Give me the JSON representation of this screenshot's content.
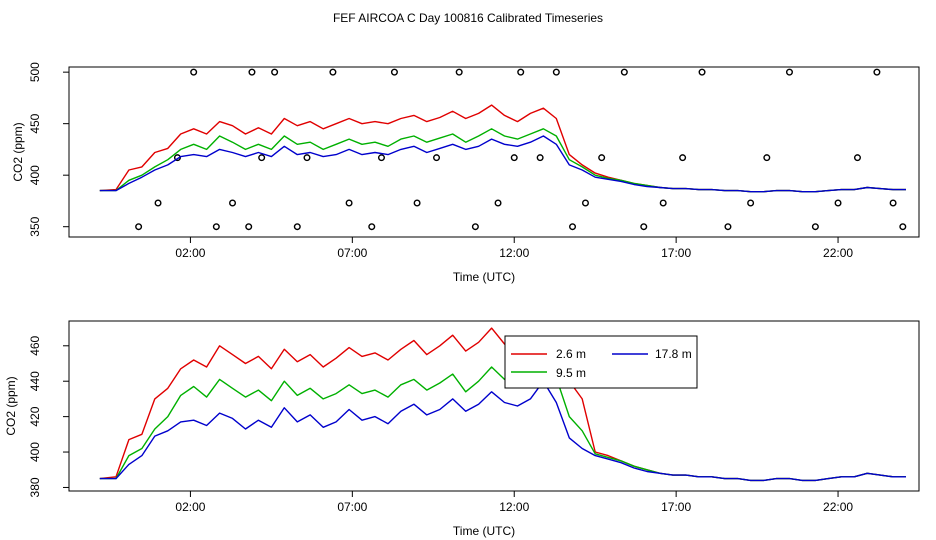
{
  "title": "FEF AIRCOA C  Day 100816  Calibrated Timeseries",
  "colors": {
    "s1": "#e00000",
    "s2": "#00b000",
    "s3": "#0000cc",
    "axis": "#000000"
  },
  "chart_data": [
    {
      "type": "line",
      "xlabel": "Time (UTC)",
      "ylabel": "CO2 (ppm)",
      "xlim": [
        -1.75,
        24.5
      ],
      "ylim": [
        340,
        505
      ],
      "xticks": [
        2,
        7,
        12,
        17,
        22
      ],
      "xtick_labels": [
        "02:00",
        "07:00",
        "12:00",
        "17:00",
        "22:00"
      ],
      "yticks": [
        350,
        400,
        450,
        500
      ],
      "ytick_labels": [
        "350",
        "400",
        "450",
        "500"
      ],
      "grid": false,
      "x": [
        -0.8,
        -0.3,
        0.1,
        0.5,
        0.9,
        1.3,
        1.7,
        2.1,
        2.5,
        2.9,
        3.3,
        3.7,
        4.1,
        4.5,
        4.9,
        5.3,
        5.7,
        6.1,
        6.5,
        6.9,
        7.3,
        7.7,
        8.1,
        8.5,
        8.9,
        9.3,
        9.7,
        10.1,
        10.5,
        10.9,
        11.3,
        11.7,
        12.1,
        12.5,
        12.9,
        13.3,
        13.7,
        14.1,
        14.5,
        14.9,
        15.3,
        15.7,
        16.1,
        16.5,
        16.9,
        17.3,
        17.7,
        18.1,
        18.5,
        18.9,
        19.3,
        19.7,
        20.1,
        20.5,
        20.9,
        21.3,
        21.7,
        22.1,
        22.5,
        22.9,
        23.3,
        23.7,
        24.1
      ],
      "series": [
        {
          "color": "s1",
          "values": [
            385,
            386,
            405,
            408,
            422,
            426,
            440,
            445,
            440,
            452,
            448,
            440,
            446,
            440,
            455,
            448,
            452,
            445,
            450,
            455,
            450,
            452,
            450,
            455,
            458,
            452,
            456,
            462,
            455,
            460,
            468,
            458,
            452,
            460,
            465,
            455,
            420,
            410,
            402,
            398,
            395,
            392,
            390,
            388,
            387,
            387,
            386,
            386,
            385,
            385,
            384,
            384,
            385,
            385,
            384,
            384,
            385,
            386,
            386,
            388,
            387,
            386,
            386
          ]
        },
        {
          "color": "s2",
          "values": [
            385,
            385,
            395,
            400,
            408,
            415,
            425,
            430,
            425,
            438,
            432,
            425,
            430,
            425,
            438,
            430,
            432,
            425,
            430,
            435,
            430,
            432,
            428,
            435,
            438,
            432,
            436,
            440,
            432,
            438,
            445,
            438,
            435,
            440,
            445,
            438,
            415,
            408,
            400,
            397,
            395,
            392,
            390,
            388,
            387,
            387,
            386,
            386,
            385,
            385,
            384,
            384,
            385,
            385,
            384,
            384,
            385,
            386,
            386,
            388,
            387,
            386,
            386
          ]
        },
        {
          "color": "s3",
          "values": [
            385,
            385,
            392,
            398,
            405,
            410,
            418,
            420,
            418,
            425,
            422,
            418,
            422,
            418,
            428,
            420,
            422,
            418,
            420,
            425,
            420,
            422,
            420,
            425,
            428,
            422,
            426,
            430,
            425,
            428,
            435,
            430,
            428,
            432,
            438,
            430,
            410,
            405,
            398,
            396,
            394,
            391,
            389,
            388,
            387,
            387,
            386,
            386,
            385,
            385,
            384,
            384,
            385,
            385,
            384,
            384,
            385,
            386,
            386,
            388,
            387,
            386,
            386
          ]
        }
      ],
      "points": {
        "x": [
          0.4,
          1.0,
          1.6,
          2.1,
          2.8,
          3.3,
          3.8,
          3.9,
          4.2,
          4.6,
          5.3,
          5.6,
          6.4,
          6.9,
          7.6,
          7.9,
          8.3,
          9.0,
          9.6,
          10.3,
          10.8,
          11.5,
          12.0,
          12.2,
          12.8,
          13.3,
          13.8,
          14.2,
          14.7,
          15.4,
          16.0,
          16.6,
          17.2,
          17.8,
          18.6,
          19.3,
          19.8,
          20.5,
          21.3,
          22.0,
          22.6,
          23.2,
          23.7,
          24.0
        ],
        "y": [
          350,
          373,
          417,
          500,
          350,
          373,
          350,
          500,
          417,
          500,
          350,
          417,
          500,
          373,
          350,
          417,
          500,
          373,
          417,
          500,
          350,
          373,
          417,
          500,
          417,
          500,
          350,
          373,
          417,
          500,
          350,
          373,
          417,
          500,
          350,
          373,
          417,
          500,
          350,
          373,
          417,
          500,
          373,
          350
        ]
      }
    },
    {
      "type": "line",
      "xlabel": "Time (UTC)",
      "ylabel": "CO2 (ppm)",
      "xlim": [
        -1.75,
        24.5
      ],
      "ylim": [
        378,
        474
      ],
      "xticks": [
        2,
        7,
        12,
        17,
        22
      ],
      "xtick_labels": [
        "02:00",
        "07:00",
        "12:00",
        "17:00",
        "22:00"
      ],
      "yticks": [
        380,
        400,
        420,
        440,
        460
      ],
      "ytick_labels": [
        "380",
        "400",
        "420",
        "440",
        "460"
      ],
      "grid": false,
      "legend_position": "upper-right-inside",
      "legend": [
        {
          "label": "2.6 m",
          "color": "s1"
        },
        {
          "label": "17.8 m",
          "color": "s3"
        },
        {
          "label": "9.5 m",
          "color": "s2"
        }
      ],
      "x": [
        -0.8,
        -0.3,
        0.1,
        0.5,
        0.9,
        1.3,
        1.7,
        2.1,
        2.5,
        2.9,
        3.3,
        3.7,
        4.1,
        4.5,
        4.9,
        5.3,
        5.7,
        6.1,
        6.5,
        6.9,
        7.3,
        7.7,
        8.1,
        8.5,
        8.9,
        9.3,
        9.7,
        10.1,
        10.5,
        10.9,
        11.3,
        11.7,
        12.1,
        12.5,
        12.9,
        13.3,
        13.7,
        14.1,
        14.5,
        14.9,
        15.3,
        15.7,
        16.1,
        16.5,
        16.9,
        17.3,
        17.7,
        18.1,
        18.5,
        18.9,
        19.3,
        19.7,
        20.1,
        20.5,
        20.9,
        21.3,
        21.7,
        22.1,
        22.5,
        22.9,
        23.3,
        23.7,
        24.1
      ],
      "series": [
        {
          "color": "s1",
          "values": [
            385,
            386,
            407,
            410,
            430,
            436,
            447,
            452,
            448,
            460,
            455,
            450,
            454,
            447,
            458,
            451,
            455,
            448,
            453,
            459,
            454,
            456,
            452,
            458,
            463,
            455,
            460,
            466,
            457,
            462,
            470,
            461,
            456,
            462,
            465,
            458,
            440,
            430,
            400,
            398,
            395,
            392,
            390,
            388,
            387,
            387,
            386,
            386,
            385,
            385,
            384,
            384,
            385,
            385,
            384,
            384,
            385,
            386,
            386,
            388,
            387,
            386,
            386
          ]
        },
        {
          "color": "s2",
          "values": [
            385,
            385,
            398,
            402,
            413,
            420,
            432,
            437,
            431,
            441,
            436,
            431,
            435,
            429,
            440,
            432,
            436,
            430,
            433,
            438,
            433,
            435,
            431,
            438,
            441,
            435,
            439,
            444,
            434,
            440,
            448,
            441,
            439,
            444,
            454,
            442,
            420,
            412,
            399,
            397,
            395,
            392,
            390,
            388,
            387,
            387,
            386,
            386,
            385,
            385,
            384,
            384,
            385,
            385,
            384,
            384,
            385,
            386,
            386,
            388,
            387,
            386,
            386
          ]
        },
        {
          "color": "s3",
          "values": [
            385,
            385,
            393,
            398,
            409,
            412,
            417,
            418,
            415,
            422,
            419,
            413,
            418,
            414,
            425,
            417,
            421,
            414,
            417,
            424,
            418,
            420,
            416,
            423,
            427,
            421,
            424,
            430,
            423,
            427,
            434,
            428,
            426,
            430,
            440,
            428,
            408,
            402,
            398,
            396,
            394,
            391,
            389,
            388,
            387,
            387,
            386,
            386,
            385,
            385,
            384,
            384,
            385,
            385,
            384,
            384,
            385,
            386,
            386,
            388,
            387,
            386,
            386
          ]
        }
      ]
    }
  ]
}
